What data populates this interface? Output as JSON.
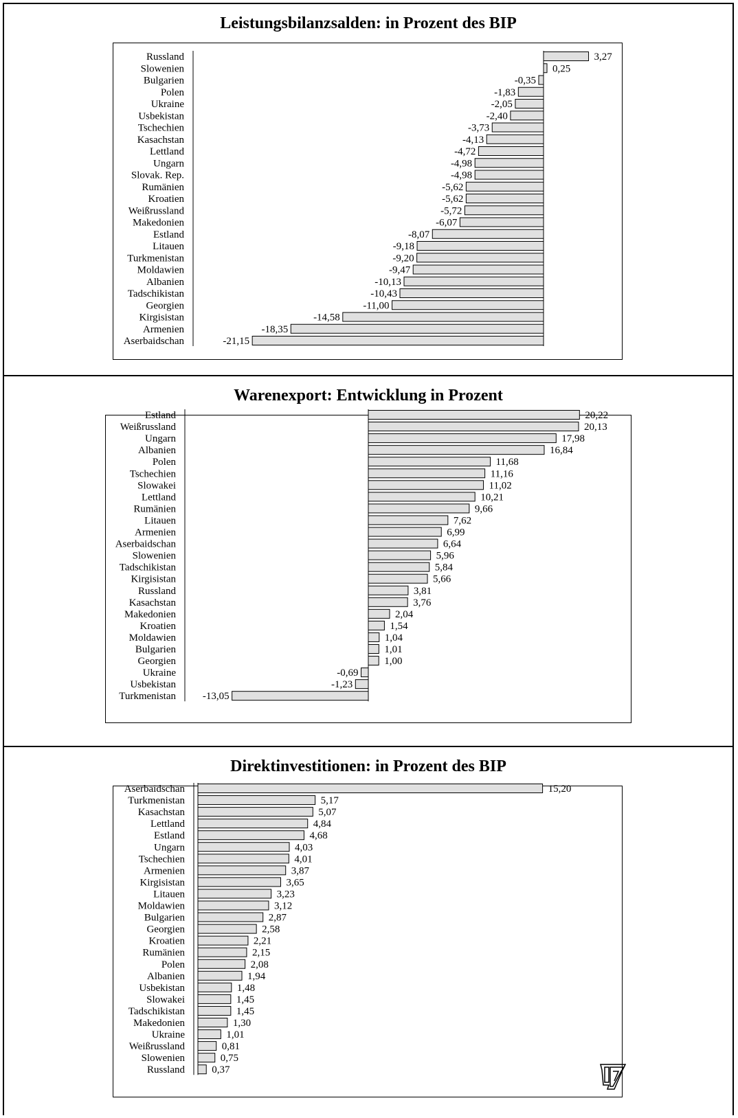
{
  "charts": [
    {
      "title": "Leistungsbilanzsalden: in Prozent des BIP",
      "chart_data": {
        "type": "bar",
        "orientation": "horizontal",
        "title": "Leistungsbilanzsalden: in Prozent des BIP",
        "categories": [
          "Russland",
          "Slowenien",
          "Bulgarien",
          "Polen",
          "Ukraine",
          "Usbekistan",
          "Tschechien",
          "Kasachstan",
          "Lettland",
          "Ungarn",
          "Slovak. Rep.",
          "Rumänien",
          "Kroatien",
          "Weißrussland",
          "Makedonien",
          "Estland",
          "Litauen",
          "Turkmenistan",
          "Moldawien",
          "Albanien",
          "Tadschikistan",
          "Georgien",
          "Kirgisistan",
          "Armenien",
          "Aserbaidschan"
        ],
        "values": [
          3.27,
          0.25,
          -0.35,
          -1.83,
          -2.05,
          -2.4,
          -3.73,
          -4.13,
          -4.72,
          -4.98,
          -4.98,
          -5.62,
          -5.62,
          -5.72,
          -6.07,
          -8.07,
          -9.18,
          -9.2,
          -9.47,
          -10.13,
          -10.43,
          -11.0,
          -14.58,
          -18.35,
          -21.15
        ],
        "value_labels": [
          "3,27",
          "0,25",
          "-0,35",
          "-1,83",
          "-2,05",
          "-2,40",
          "-3,73",
          "-4,13",
          "-4,72",
          "-4,98",
          "-4,98",
          "-5,62",
          "-5,62",
          "-5,72",
          "-6,07",
          "-8,07",
          "-9,18",
          "-9,20",
          "-9,47",
          "-10,13",
          "-10,43",
          "-11,00",
          "-14,58",
          "-18,35",
          "-21,15"
        ],
        "xlim": [
          -25,
          5
        ],
        "grid": false,
        "bar_color": "#e0e0e0"
      }
    },
    {
      "title": "Warenexport: Entwicklung in Prozent",
      "chart_data": {
        "type": "bar",
        "orientation": "horizontal",
        "title": "Warenexport: Entwicklung in Prozent",
        "categories": [
          "Estland",
          "Weißrussland",
          "Ungarn",
          "Albanien",
          "Polen",
          "Tschechien",
          "Slowakei",
          "Lettland",
          "Rumänien",
          "Litauen",
          "Armenien",
          "Aserbaidschan",
          "Slowenien",
          "Tadschikistan",
          "Kirgisistan",
          "Russland",
          "Kasachstan",
          "Makedonien",
          "Kroatien",
          "Moldawien",
          "Bulgarien",
          "Georgien",
          "Ukraine",
          "Usbekistan",
          "Turkmenistan"
        ],
        "values": [
          20.22,
          20.13,
          17.98,
          16.84,
          11.68,
          11.16,
          11.02,
          10.21,
          9.66,
          7.62,
          6.99,
          6.64,
          5.96,
          5.84,
          5.66,
          3.81,
          3.76,
          2.04,
          1.54,
          1.04,
          1.01,
          1.0,
          -0.69,
          -1.23,
          -13.05
        ],
        "value_labels": [
          "20,22",
          "20,13",
          "17,98",
          "16,84",
          "11,68",
          "11,16",
          "11,02",
          "10,21",
          "9,66",
          "7,62",
          "6,99",
          "6,64",
          "5,96",
          "5,84",
          "5,66",
          "3,81",
          "3,76",
          "2,04",
          "1,54",
          "1,04",
          "1,01",
          "1,00",
          "-0,69",
          "-1,23",
          "-13,05"
        ],
        "xlim": [
          -16,
          24
        ],
        "grid": false,
        "bar_color": "#e0e0e0"
      }
    },
    {
      "title": "Direktinvestitionen: in Prozent des BIP",
      "chart_data": {
        "type": "bar",
        "orientation": "horizontal",
        "title": "Direktinvestitionen: in Prozent des BIP",
        "categories": [
          "Aserbaidschan",
          "Turkmenistan",
          "Kasachstan",
          "Lettland",
          "Estland",
          "Ungarn",
          "Tschechien",
          "Armenien",
          "Kirgisistan",
          "Litauen",
          "Moldawien",
          "Bulgarien",
          "Georgien",
          "Kroatien",
          "Rumänien",
          "Polen",
          "Albanien",
          "Usbekistan",
          "Slowakei",
          "Tadschikistan",
          "Makedonien",
          "Ukraine",
          "Weißrussland",
          "Slowenien",
          "Russland"
        ],
        "values": [
          15.2,
          5.17,
          5.07,
          4.84,
          4.68,
          4.03,
          4.01,
          3.87,
          3.65,
          3.23,
          3.12,
          2.87,
          2.58,
          2.21,
          2.15,
          2.08,
          1.94,
          1.48,
          1.45,
          1.45,
          1.3,
          1.01,
          0.81,
          0.75,
          0.37
        ],
        "value_labels": [
          "15,20",
          "5,17",
          "5,07",
          "4,84",
          "4,68",
          "4,03",
          "4,01",
          "3,87",
          "3,65",
          "3,23",
          "3,12",
          "2,87",
          "2,58",
          "2,21",
          "2,15",
          "2,08",
          "1,94",
          "1,48",
          "1,45",
          "1,45",
          "1,30",
          "1,01",
          "0,81",
          "0,75",
          "0,37"
        ],
        "xlim": [
          0,
          18
        ],
        "grid": false,
        "bar_color": "#e0e0e0"
      }
    }
  ],
  "logo": {
    "name": "iw-logo-icon"
  }
}
